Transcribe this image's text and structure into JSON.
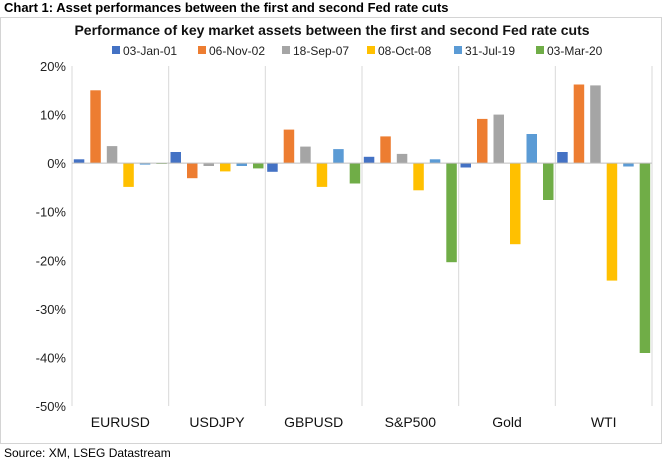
{
  "caption": "Chart 1: Asset performances between the first and second Fed rate cuts",
  "source": "Source: XM, LSEG Datastream",
  "chart_data": {
    "type": "bar",
    "title": "Performance of key market assets between the first and second Fed rate cuts",
    "xlabel": "",
    "ylabel": "",
    "categories": [
      "EURUSD",
      "USDJPY",
      "GBPUSD",
      "S&P500",
      "Gold",
      "WTI"
    ],
    "ylim": [
      -50,
      20
    ],
    "yticks": [
      20,
      10,
      0,
      -10,
      -20,
      -30,
      -40,
      -50
    ],
    "ytick_labels": [
      "20%",
      "10%",
      "0%",
      "-10%",
      "-20%",
      "-30%",
      "-40%",
      "-50%"
    ],
    "grid": false,
    "legend_position": "top",
    "series": [
      {
        "name": "03-Jan-01",
        "color": "#4472C4",
        "values": [
          0.8,
          2.3,
          -1.8,
          1.3,
          -0.9,
          2.3
        ]
      },
      {
        "name": "06-Nov-02",
        "color": "#ED7D31",
        "values": [
          15.0,
          -3.1,
          6.9,
          5.5,
          9.1,
          16.2
        ]
      },
      {
        "name": "18-Sep-07",
        "color": "#A5A5A5",
        "values": [
          3.5,
          -0.6,
          3.4,
          1.9,
          10.0,
          16.0
        ]
      },
      {
        "name": "08-Oct-08",
        "color": "#FFC000",
        "values": [
          -4.9,
          -1.7,
          -4.9,
          -5.6,
          -16.7,
          -24.2
        ]
      },
      {
        "name": "31-Jul-19",
        "color": "#5B9BD5",
        "values": [
          -0.3,
          -0.6,
          2.9,
          0.8,
          6.0,
          -0.7
        ]
      },
      {
        "name": "03-Mar-20",
        "color": "#70AD47",
        "values": [
          -0.1,
          -1.1,
          -4.2,
          -20.4,
          -7.6,
          -39.1
        ]
      }
    ]
  }
}
